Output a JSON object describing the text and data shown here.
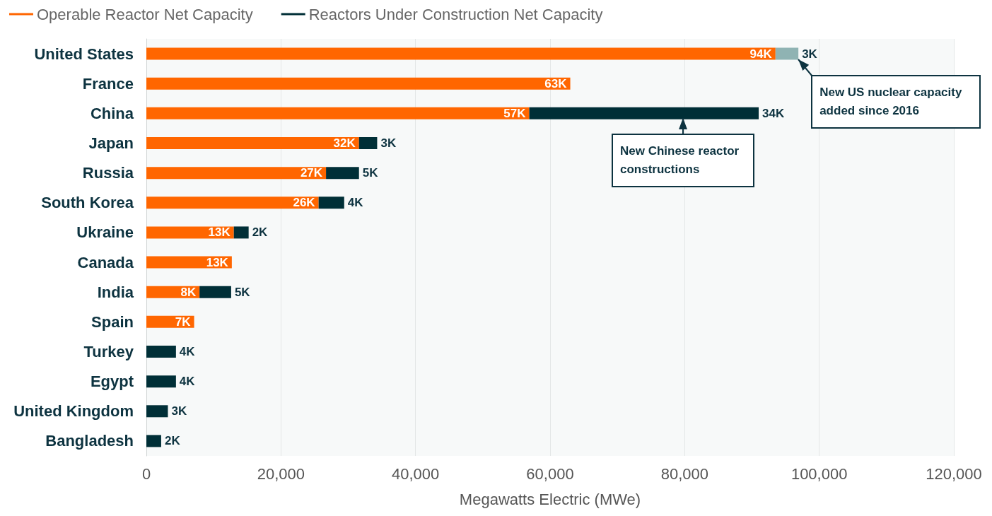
{
  "chart_data": {
    "type": "bar",
    "orientation": "horizontal",
    "stacked": true,
    "grid": "x",
    "legend": "top left",
    "categories": [
      "United States",
      "France",
      "China",
      "Japan",
      "Russia",
      "South Korea",
      "Ukraine",
      "Canada",
      "India",
      "Spain",
      "Turkey",
      "Egypt",
      "United Kingdom",
      "Bangladesh"
    ],
    "series": [
      {
        "name": "Operable Reactor Net Capacity",
        "color": "#ff6600",
        "values": [
          93500,
          63000,
          56900,
          31600,
          26700,
          25600,
          13000,
          12700,
          7900,
          7100,
          null,
          null,
          null,
          null
        ],
        "value_labels": [
          "94K",
          "63K",
          "57K",
          "32K",
          "27K",
          "26K",
          "13K",
          "13K",
          "8K",
          "7K",
          null,
          null,
          null,
          null
        ]
      },
      {
        "name": "Reactors Under Construction Net Capacity",
        "color": "#002f37",
        "colors": [
          "#8fb3b3",
          "#002f37",
          "#002f37",
          "#002f37",
          "#002f37",
          "#002f37",
          "#002f37",
          "#002f37",
          "#002f37",
          "#002f37",
          "#002f37",
          "#002f37",
          "#002f37",
          "#002f37"
        ],
        "values": [
          3400,
          null,
          34100,
          2700,
          4900,
          3800,
          2200,
          null,
          4700,
          null,
          4400,
          4400,
          3200,
          2200
        ],
        "value_labels": [
          "3K",
          null,
          "34K",
          "3K",
          "5K",
          "4K",
          "2K",
          null,
          "5K",
          null,
          "4K",
          "4K",
          "3K",
          "2K"
        ]
      }
    ],
    "xlim": [
      0,
      120000
    ],
    "xticks": [
      0,
      {
        "value": 20000,
        "label": "20,000"
      },
      {
        "value": 40000,
        "label": "40,000"
      },
      {
        "value": 60000,
        "label": "60,000"
      },
      {
        "value": 80000,
        "label": "80,000"
      },
      {
        "value": 100000,
        "label": "100,000"
      },
      {
        "value": 120000,
        "label": "120,000"
      }
    ],
    "xlabel": "Megawatts Electric (MWe)",
    "annotations": [
      {
        "text": "New US nuclear capacity added since 2016",
        "x": 96900,
        "y": "United States"
      },
      "New Chinese reactor constructions"
    ]
  }
}
